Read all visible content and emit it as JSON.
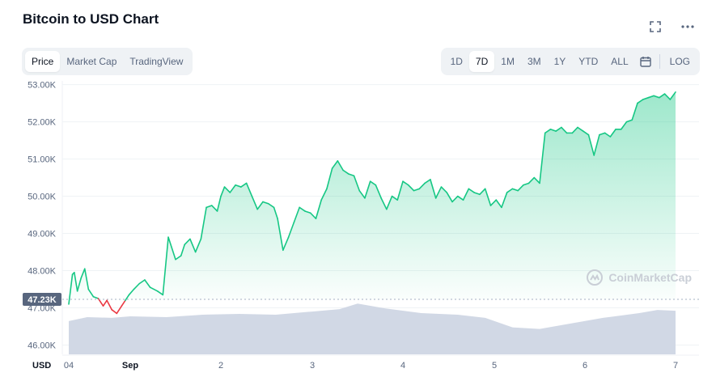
{
  "title": "Bitcoin to USD Chart",
  "header_icons": [
    "expand-icon",
    "more-icon"
  ],
  "tabs_left": [
    "Price",
    "Market Cap",
    "TradingView"
  ],
  "tabs_left_active": 0,
  "ranges": [
    "1D",
    "7D",
    "1M",
    "3M",
    "1Y",
    "YTD",
    "ALL"
  ],
  "ranges_active": 1,
  "log_label": "LOG",
  "watermark": "CoinMarketCap",
  "colors": {
    "up": "#16c784",
    "down": "#ea3943",
    "volume": "#cfd6e4",
    "grid": "#eff2f5"
  },
  "chart_data": {
    "type": "line",
    "title": "Bitcoin to USD Chart",
    "currency_label": "USD",
    "current_price_label": "47.23K",
    "baseline": 47230,
    "y_ticks": [
      "53.00K",
      "52.00K",
      "51.00K",
      "50.00K",
      "49.00K",
      "48.00K",
      "47.00K",
      "46.00K"
    ],
    "ylim": [
      45750,
      53100
    ],
    "x_ticks": [
      "04",
      "Sep",
      "2",
      "3",
      "4",
      "5",
      "6",
      "7"
    ],
    "xlim": [
      0,
      7
    ],
    "series": [
      {
        "x": [
          0,
          0.06,
          0.09,
          0.14,
          0.2,
          0.26,
          0.32,
          0.4,
          0.48,
          0.56,
          0.62,
          0.7,
          0.78,
          0.86,
          0.92,
          0.98,
          1.04,
          1.1,
          1.16,
          1.22,
          1.3,
          1.36,
          1.42,
          1.5,
          1.56,
          1.6,
          1.66,
          1.72,
          1.78,
          1.84,
          1.9,
          1.96,
          2.0,
          2.04,
          2.1,
          2.16,
          2.22,
          2.28,
          2.34,
          2.4,
          2.46,
          2.52,
          2.58,
          2.62,
          2.68,
          2.74,
          2.8,
          2.86,
          2.92,
          2.98,
          3.04,
          3.1,
          3.16,
          3.22,
          3.28,
          3.34,
          3.4,
          3.46,
          3.52,
          3.58,
          3.64,
          3.7,
          3.76,
          3.82,
          3.88,
          3.94,
          4.0,
          4.06,
          4.12,
          4.18,
          4.24,
          4.3,
          4.36,
          4.42,
          4.48,
          4.54,
          4.6,
          4.66,
          4.72,
          4.78,
          4.84,
          4.9,
          4.96,
          5.02,
          5.08,
          5.14,
          5.2,
          5.26,
          5.32,
          5.38,
          5.44,
          5.5,
          5.56,
          5.62,
          5.68,
          5.74,
          5.8,
          5.86,
          5.92,
          5.98,
          6.04,
          6.1,
          6.16,
          6.22,
          6.28,
          6.34,
          6.4,
          6.46,
          6.52,
          6.58,
          6.64,
          6.7,
          6.76,
          6.82,
          6.88,
          6.94,
          7.0
        ],
        "y": [
          47100,
          47900,
          47950,
          47450,
          47800,
          48050,
          47500,
          47300,
          47250,
          47050,
          47200,
          46950,
          46850,
          47050,
          47200,
          47350,
          47500,
          47650,
          47750,
          47550,
          47450,
          47350,
          48900,
          48300,
          48400,
          48700,
          48850,
          48500,
          48850,
          49700,
          49750,
          49600,
          50000,
          50250,
          50100,
          50300,
          50250,
          50350,
          50000,
          49650,
          49850,
          49800,
          49700,
          49400,
          48550,
          48900,
          49300,
          49700,
          49600,
          49550,
          49400,
          49900,
          50200,
          50750,
          50950,
          50700,
          50600,
          50550,
          50150,
          49950,
          50400,
          50300,
          49950,
          49650,
          50000,
          49900,
          50400,
          50300,
          50150,
          50200,
          50350,
          50450,
          49950,
          50250,
          50100,
          49850,
          50000,
          49900,
          50200,
          50100,
          50050,
          50200,
          49750,
          49900,
          49700,
          50100,
          50200,
          50150,
          50300,
          50350,
          50500,
          50350,
          51700,
          51800,
          51750,
          51850,
          51700,
          51700,
          51850,
          51750,
          51650,
          51100,
          51650,
          51700,
          51600,
          51800,
          51800,
          52000,
          52050,
          52500,
          52600,
          52650,
          52700,
          52650,
          52750,
          52600,
          52800
        ]
      }
    ],
    "volume": {
      "x": [
        0,
        0.3,
        0.7,
        1.0,
        1.4,
        1.8,
        2.2,
        2.6,
        3.0,
        3.3,
        3.5,
        3.8,
        4.2,
        4.6,
        4.9,
        5.2,
        5.5,
        5.9,
        6.2,
        6.6,
        6.8,
        7.0
      ],
      "v": [
        0.42,
        0.47,
        0.46,
        0.48,
        0.47,
        0.5,
        0.51,
        0.5,
        0.54,
        0.57,
        0.64,
        0.58,
        0.52,
        0.5,
        0.46,
        0.34,
        0.32,
        0.4,
        0.46,
        0.52,
        0.56,
        0.55
      ]
    }
  }
}
